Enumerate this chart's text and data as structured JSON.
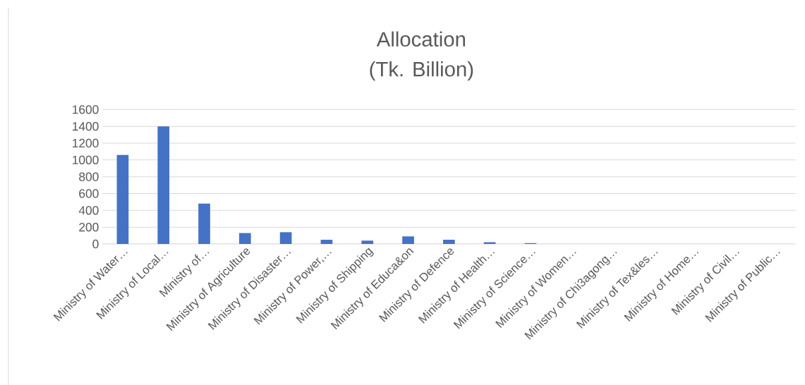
{
  "chart_data": {
    "type": "bar",
    "title": "Allocation",
    "subtitle": "(Tk. Billion)",
    "categories": [
      "Ministry of Water…",
      "Ministry of Local…",
      "Ministry of…",
      "Ministry of Agriculture",
      "Ministry of Disaster…",
      "Ministry of Power,…",
      "Ministry of Shipping",
      "Ministry of Educa&on",
      "Ministry of Defence",
      "Ministry of Health…",
      "Ministry of Science…",
      "Ministry of Women…",
      "Ministry of Chi3agong…",
      "Ministry of Tex&les…",
      "Ministry of Home…",
      "Ministry of Civil…",
      "Ministry of Public…"
    ],
    "values": [
      1060,
      1400,
      480,
      130,
      140,
      50,
      40,
      90,
      50,
      20,
      10,
      null,
      null,
      null,
      null,
      null,
      null
    ],
    "color": "#4472c4",
    "ylim": [
      0,
      1600
    ],
    "yticks": [
      0,
      200,
      400,
      600,
      800,
      1000,
      1200,
      1400,
      1600
    ],
    "grid": "y"
  }
}
